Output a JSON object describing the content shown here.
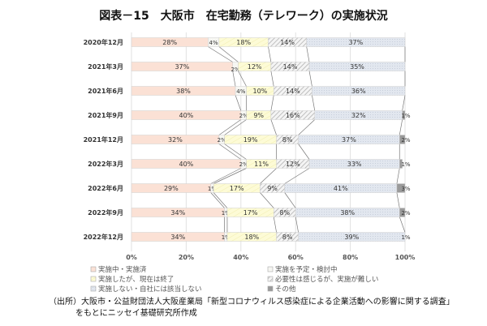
{
  "chart_data": {
    "type": "bar",
    "orientation": "horizontal",
    "stacked": "percent",
    "title": "図表－15　大阪市　在宅勤務（テレワーク）の実施状況",
    "categories": [
      "2020年12月",
      "2021年3月",
      "2021年6月",
      "2021年9月",
      "2021年12月",
      "2022年3月",
      "2022年6月",
      "2022年9月",
      "2022年12月"
    ],
    "series": [
      {
        "name": "実施中・実施済",
        "color": "#fbe1d5",
        "values": [
          28,
          37,
          38,
          40,
          32,
          40,
          29,
          34,
          34
        ]
      },
      {
        "name": "実施を予定・検討中",
        "color": "#f4f4f0",
        "values": [
          4,
          2,
          4,
          2,
          2,
          2,
          1,
          1,
          1
        ]
      },
      {
        "name": "実施したが、現在は終了",
        "color": "#fdfbd6",
        "values": [
          18,
          12,
          10,
          9,
          19,
          11,
          17,
          17,
          18
        ]
      },
      {
        "name": "必要性は感じるが、実施が難しい",
        "color": "#e6e6e6",
        "values": [
          14,
          14,
          14,
          16,
          8,
          12,
          9,
          8,
          8
        ]
      },
      {
        "name": "実施しない・自社には該当しない",
        "color": "#e2e7ef",
        "values": [
          37,
          35,
          36,
          32,
          37,
          33,
          41,
          38,
          39
        ]
      },
      {
        "name": "その他",
        "color": "#9a9a9a",
        "values": [
          null,
          null,
          null,
          1,
          2,
          1,
          3,
          2,
          1
        ]
      }
    ],
    "xlim": [
      0,
      100
    ],
    "xticks": [
      "0%",
      "20%",
      "40%",
      "60%",
      "80%",
      "100%"
    ],
    "grid": true,
    "legend_placement": "bottom",
    "series_lines": true
  },
  "source": {
    "line1": "（出所）大阪市・公益財団法人大阪産業局「新型コロナウィルス感染症による企業活動への影響に関する調査」",
    "line2": "をもとにニッセイ基礎研究所作成"
  }
}
